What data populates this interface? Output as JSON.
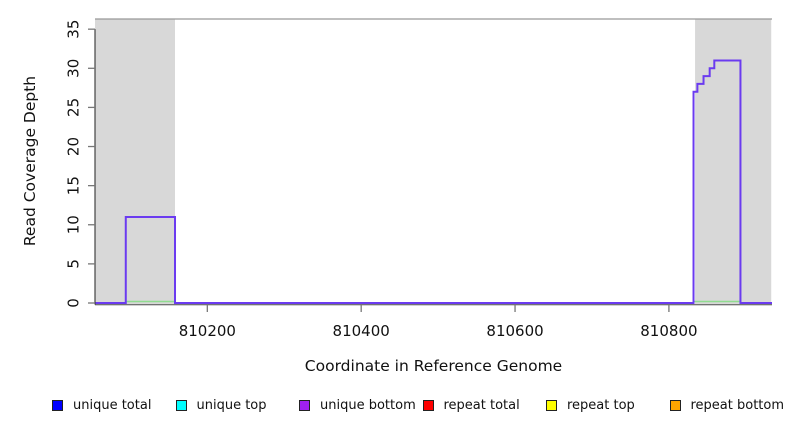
{
  "chart_data": {
    "type": "line",
    "subtype": "step-coverage-plot",
    "title": "",
    "xlabel": "Coordinate in Reference Genome",
    "ylabel": "Read Coverage Depth",
    "xlim": [
      810054,
      810934
    ],
    "ylim": [
      0,
      36.3
    ],
    "x_ticks": [
      810200,
      810400,
      810600,
      810800
    ],
    "y_ticks": [
      0,
      5,
      10,
      15,
      20,
      25,
      30,
      35
    ],
    "grid": false,
    "axis_color": "#444444",
    "tick_color": "#777777",
    "tick_label_color": "#111111",
    "repeat_region_shading": {
      "color": "#d8d8d8",
      "regions": [
        [
          810054,
          810158
        ],
        [
          810834,
          810933
        ]
      ]
    },
    "top_boundary_line": {
      "value": 36.3,
      "color": "#999999"
    },
    "coverage_series": {
      "name": "unique bottom coverage",
      "color": "#6b3bf0",
      "steps": [
        [
          810054,
          0
        ],
        [
          810094,
          11
        ],
        [
          810158,
          0
        ],
        [
          810832,
          27
        ],
        [
          810837,
          28
        ],
        [
          810845,
          29
        ],
        [
          810853,
          30
        ],
        [
          810859,
          31
        ],
        [
          810893,
          0
        ]
      ]
    },
    "zero_baseline_series": {
      "name": "zero-depth baseline",
      "color": "#90dc90",
      "segments": [
        [
          810094,
          810158
        ],
        [
          810832,
          810893
        ]
      ]
    },
    "legend": {
      "items": [
        {
          "label": "unique total",
          "color": "#0000ff"
        },
        {
          "label": "unique top",
          "color": "#00ffff"
        },
        {
          "label": "unique bottom",
          "color": "#a020f0"
        },
        {
          "label": "repeat total",
          "color": "#ff0000"
        },
        {
          "label": "repeat top",
          "color": "#ffff00"
        },
        {
          "label": "repeat bottom",
          "color": "#ffa500"
        }
      ],
      "position": "bottom"
    }
  }
}
